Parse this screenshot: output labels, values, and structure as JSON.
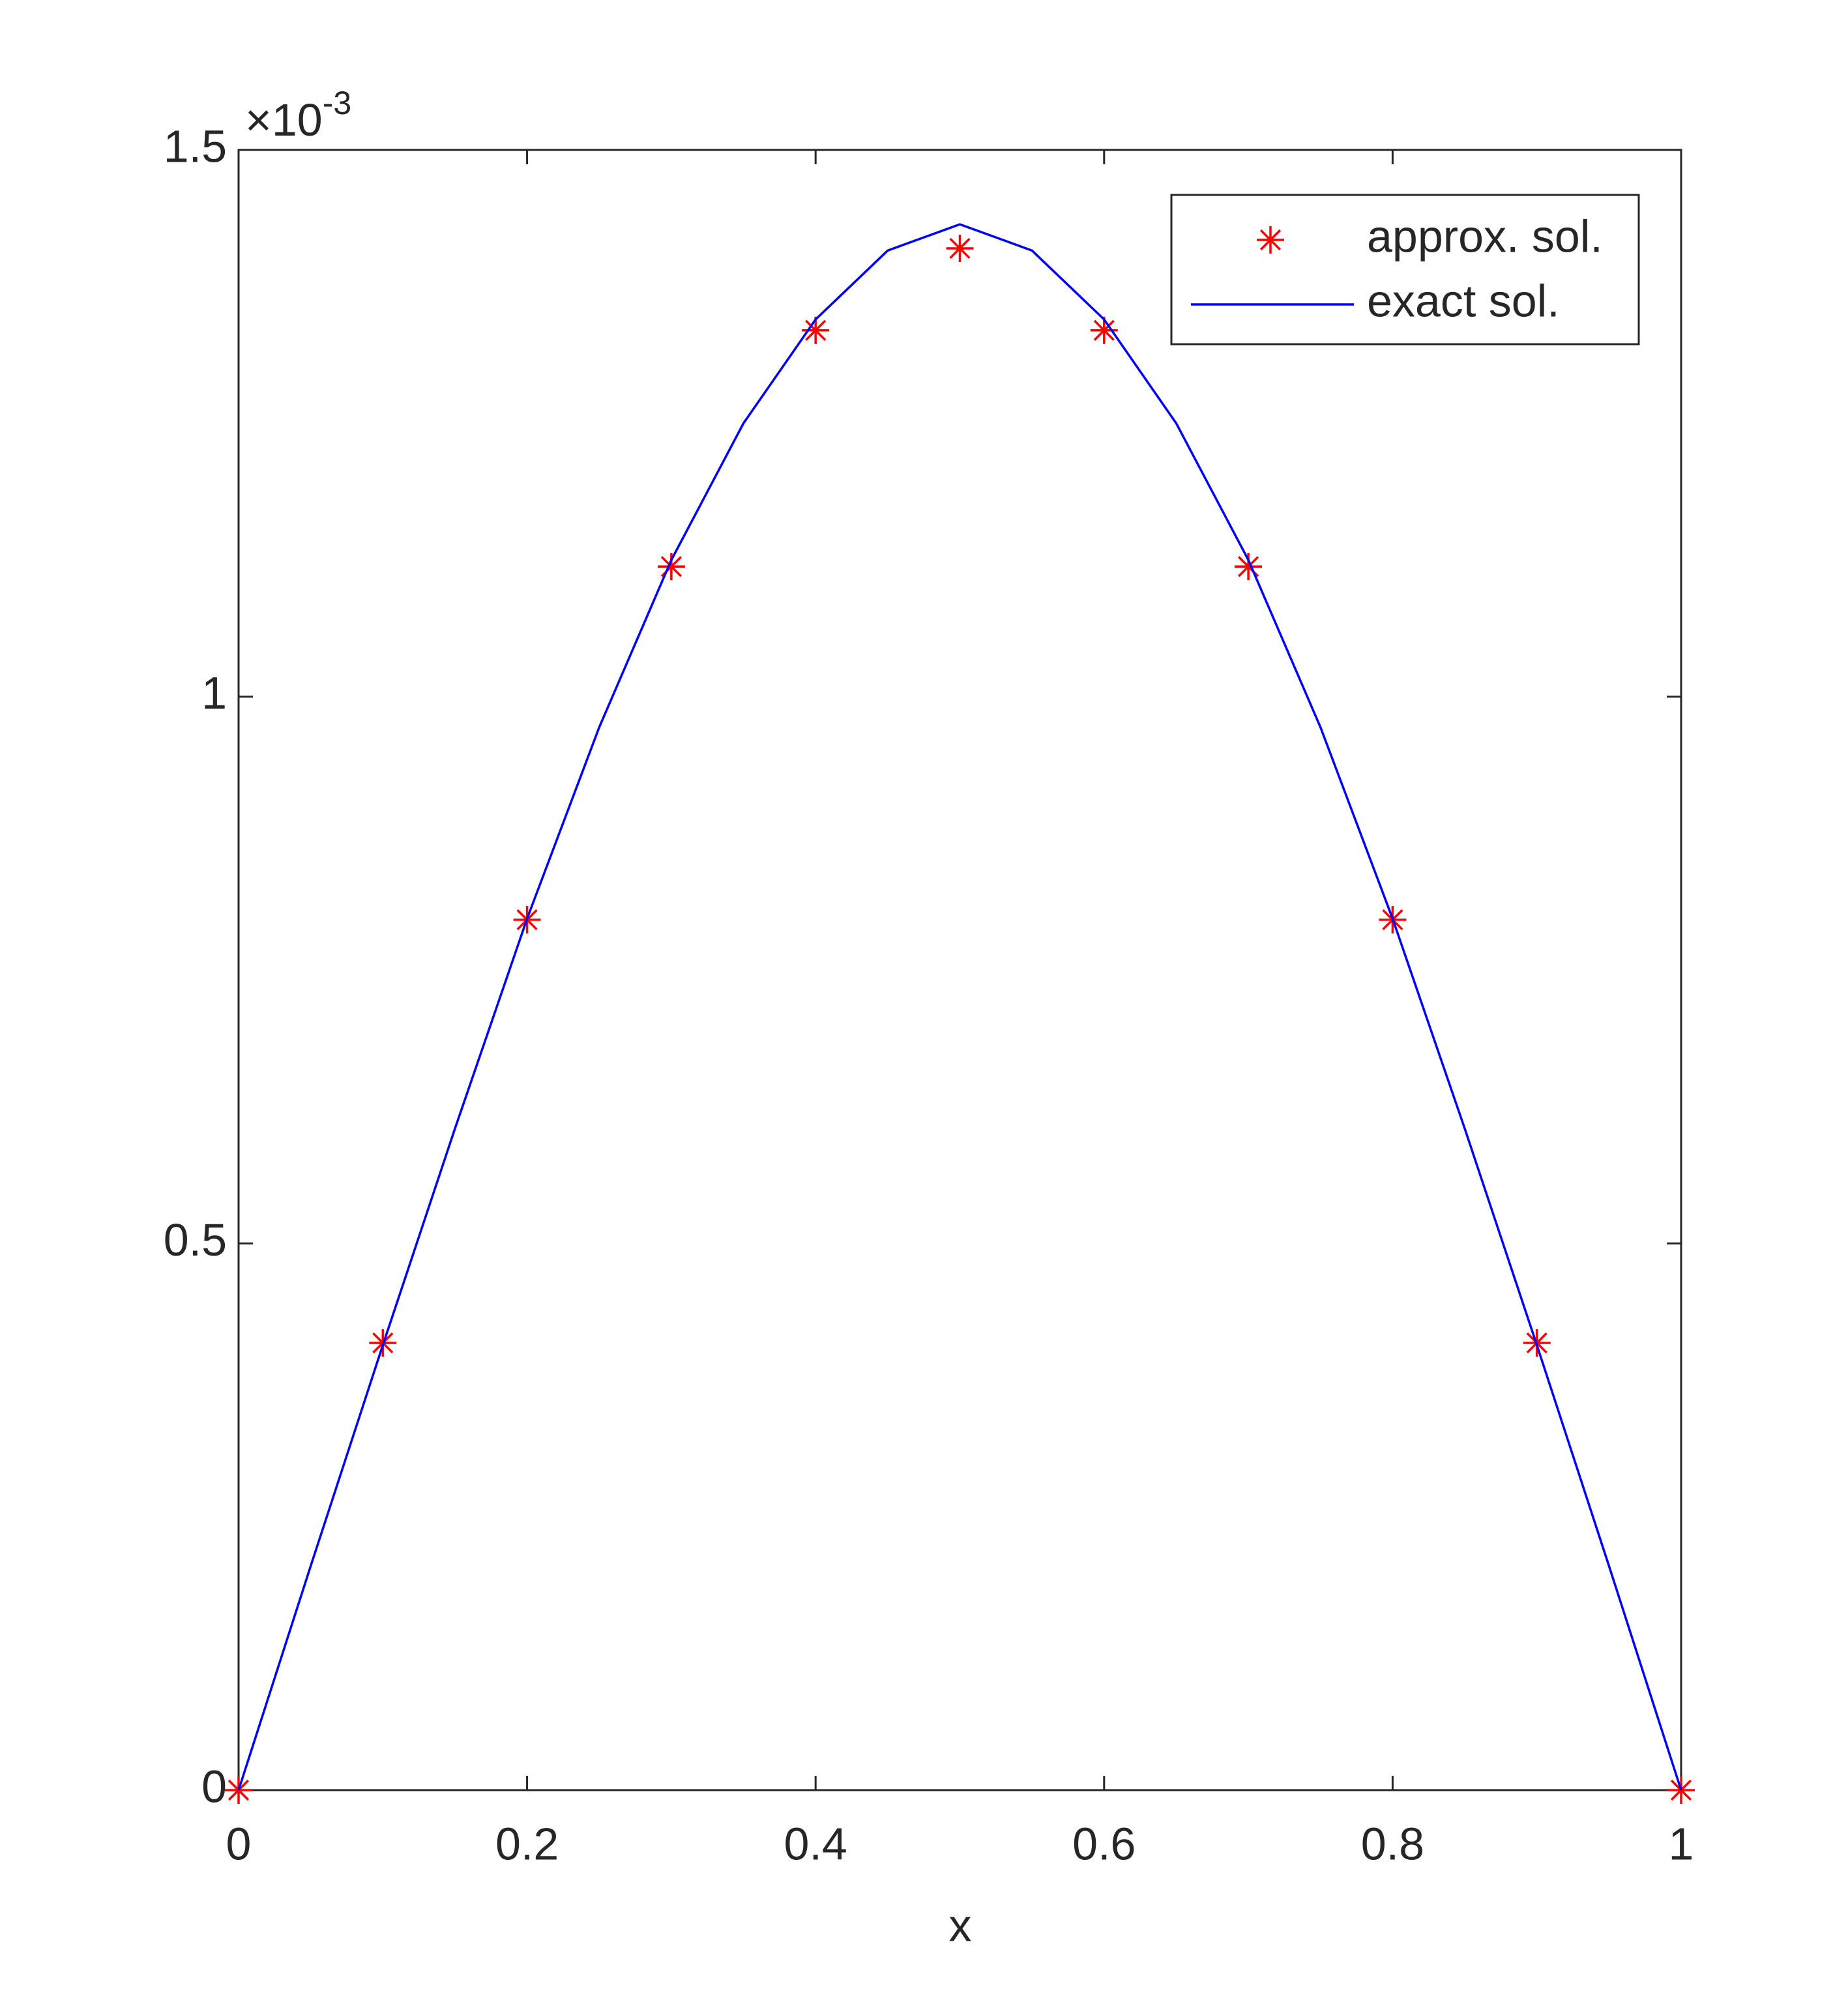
{
  "chart_data": {
    "type": "line",
    "xlabel": "x",
    "y_multiplier": {
      "base": "×10",
      "exponent": "-3"
    },
    "xlim": [
      0,
      1
    ],
    "xticks": [
      0,
      0.2,
      0.4,
      0.6,
      0.8,
      1
    ],
    "ylim": [
      0,
      1.5
    ],
    "yticks": [
      0,
      0.5,
      1,
      1.5
    ],
    "legend": "upper right",
    "series": [
      {
        "name": "approx. sol.",
        "color": "#ff0000",
        "marker": "*",
        "line": false,
        "x": [
          0,
          0.1,
          0.2,
          0.3,
          0.4,
          0.5,
          0.6,
          0.7,
          0.8,
          0.9,
          1
        ],
        "values": [
          0,
          0.409,
          0.796,
          1.119,
          1.335,
          1.41,
          1.335,
          1.119,
          0.796,
          0.409,
          0
        ]
      },
      {
        "name": "exact sol.",
        "color": "#0000ff",
        "marker": null,
        "line": true,
        "x": [
          0,
          0.05,
          0.1,
          0.15,
          0.2,
          0.25,
          0.3,
          0.35,
          0.4,
          0.45,
          0.5,
          0.55,
          0.6,
          0.65,
          0.7,
          0.75,
          0.8,
          0.85,
          0.9,
          0.95,
          1
        ],
        "values": [
          0,
          0.205,
          0.407,
          0.605,
          0.797,
          0.972,
          1.125,
          1.25,
          1.345,
          1.408,
          1.432,
          1.408,
          1.345,
          1.25,
          1.125,
          0.972,
          0.797,
          0.605,
          0.407,
          0.205,
          0
        ]
      }
    ]
  }
}
